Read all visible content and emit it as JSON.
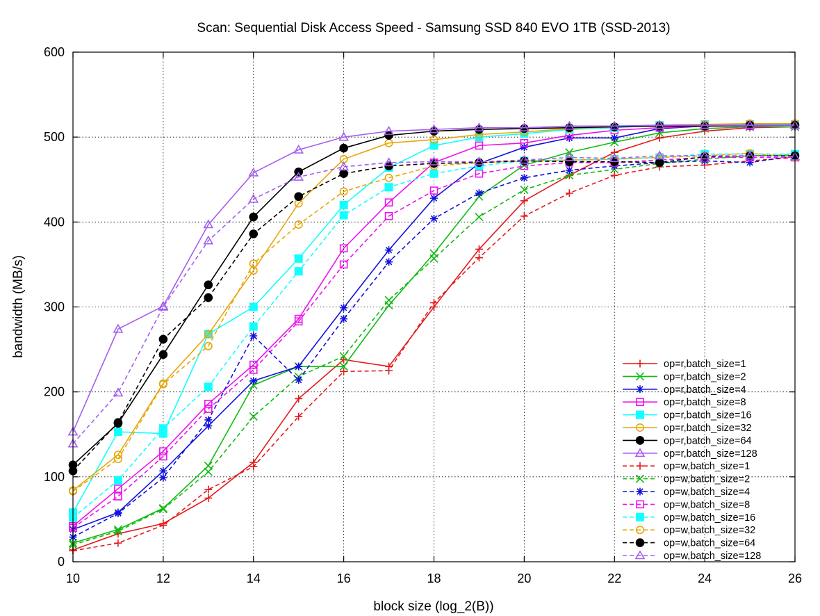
{
  "chart_data": {
    "type": "line",
    "title": "Scan: Sequential Disk Access Speed - Samsung SSD 840 EVO 1TB (SSD-2013)",
    "xlabel": "block size (log_2(B))",
    "ylabel": "bandwidth (MB/s)",
    "xlim": [
      10,
      26
    ],
    "ylim": [
      0,
      600
    ],
    "xticks": [
      10,
      12,
      14,
      16,
      18,
      20,
      22,
      24,
      26
    ],
    "yticks": [
      0,
      100,
      200,
      300,
      400,
      500,
      600
    ],
    "grid": true,
    "legend_position": "bottom-right",
    "x": [
      10,
      11,
      12,
      13,
      14,
      15,
      16,
      17,
      18,
      19,
      20,
      21,
      22,
      23,
      24,
      25,
      26
    ],
    "series": [
      {
        "name": "op=r,batch_size=1",
        "color": "#e41a1c",
        "dash": "solid",
        "marker": "plus",
        "values": [
          14,
          33,
          45,
          75,
          117,
          192,
          238,
          230,
          300,
          368,
          425,
          455,
          482,
          499,
          507,
          511,
          512
        ]
      },
      {
        "name": "op=r,batch_size=2",
        "color": "#11bb11",
        "dash": "solid",
        "marker": "cross",
        "values": [
          22,
          38,
          63,
          113,
          208,
          230,
          230,
          302,
          363,
          430,
          467,
          482,
          494,
          505,
          510,
          512,
          512
        ]
      },
      {
        "name": "op=r,batch_size=4",
        "color": "#1111dd",
        "dash": "solid",
        "marker": "star",
        "values": [
          38,
          58,
          107,
          160,
          213,
          230,
          299,
          367,
          428,
          469,
          488,
          499,
          499,
          510,
          513,
          513,
          514
        ]
      },
      {
        "name": "op=r,batch_size=8",
        "color": "#ee11ee",
        "dash": "solid",
        "marker": "square-open",
        "values": [
          42,
          86,
          130,
          186,
          232,
          286,
          369,
          423,
          470,
          490,
          493,
          502,
          508,
          511,
          513,
          513,
          514
        ]
      },
      {
        "name": "op=r,batch_size=16",
        "color": "#11ffff",
        "dash": "solid",
        "marker": "square-filled",
        "values": [
          58,
          153,
          151,
          268,
          300,
          357,
          420,
          464,
          490,
          500,
          504,
          509,
          511,
          514,
          515,
          515,
          515
        ]
      },
      {
        "name": "op=r,batch_size=32",
        "color": "#e8a60a",
        "dash": "solid",
        "marker": "circle-open",
        "values": [
          84,
          126,
          210,
          268,
          343,
          422,
          474,
          493,
          497,
          503,
          506,
          510,
          512,
          514,
          515,
          516,
          516
        ]
      },
      {
        "name": "op=r,batch_size=64",
        "color": "#000000",
        "dash": "solid",
        "marker": "circle-filled",
        "values": [
          114,
          163,
          244,
          326,
          406,
          459,
          487,
          502,
          507,
          509,
          510,
          511,
          512,
          513,
          513,
          514,
          514
        ]
      },
      {
        "name": "op=r,batch_size=128",
        "color": "#a45ef0",
        "dash": "solid",
        "marker": "triangle-open",
        "values": [
          153,
          274,
          301,
          397,
          458,
          485,
          500,
          507,
          509,
          511,
          511,
          513,
          513,
          514,
          514,
          514,
          514
        ]
      },
      {
        "name": "op=w,batch_size=1",
        "color": "#e41a1c",
        "dash": "dashed",
        "marker": "plus",
        "values": [
          13,
          22,
          43,
          85,
          112,
          171,
          224,
          225,
          305,
          358,
          407,
          434,
          455,
          465,
          467,
          472,
          476
        ]
      },
      {
        "name": "op=w,batch_size=2",
        "color": "#11bb11",
        "dash": "dashed",
        "marker": "cross",
        "values": [
          20,
          36,
          62,
          106,
          171,
          218,
          242,
          308,
          357,
          406,
          438,
          455,
          462,
          469,
          474,
          478,
          479
        ]
      },
      {
        "name": "op=w,batch_size=4",
        "color": "#1111dd",
        "dash": "dashed",
        "marker": "star",
        "values": [
          29,
          57,
          99,
          167,
          266,
          214,
          286,
          353,
          404,
          434,
          452,
          461,
          466,
          470,
          472,
          470,
          478
        ]
      },
      {
        "name": "op=w,batch_size=8",
        "color": "#ee11ee",
        "dash": "dashed",
        "marker": "square-open",
        "values": [
          40,
          77,
          124,
          180,
          226,
          283,
          350,
          407,
          437,
          457,
          466,
          470,
          470,
          473,
          476,
          476,
          476
        ]
      },
      {
        "name": "op=w,batch_size=16",
        "color": "#11ffff",
        "dash": "dashed",
        "marker": "square-filled",
        "values": [
          52,
          96,
          157,
          206,
          277,
          342,
          408,
          441,
          457,
          466,
          472,
          473,
          474,
          476,
          480,
          480,
          480
        ]
      },
      {
        "name": "op=w,batch_size=32",
        "color": "#e8a60a",
        "dash": "dashed",
        "marker": "circle-open",
        "values": [
          83,
          121,
          209,
          254,
          351,
          397,
          436,
          452,
          466,
          470,
          472,
          473,
          474,
          476,
          478,
          481,
          476
        ]
      },
      {
        "name": "op=w,batch_size=64",
        "color": "#000000",
        "dash": "dashed",
        "marker": "circle-filled",
        "values": [
          107,
          164,
          262,
          311,
          386,
          430,
          457,
          466,
          469,
          470,
          472,
          471,
          471,
          470,
          477,
          478,
          478
        ]
      },
      {
        "name": "op=w,batch_size=128",
        "color": "#a45ef0",
        "dash": "dashed",
        "marker": "triangle-open",
        "values": [
          139,
          199,
          300,
          378,
          427,
          453,
          465,
          470,
          471,
          471,
          473,
          476,
          475,
          478,
          478,
          478,
          477
        ]
      }
    ]
  }
}
